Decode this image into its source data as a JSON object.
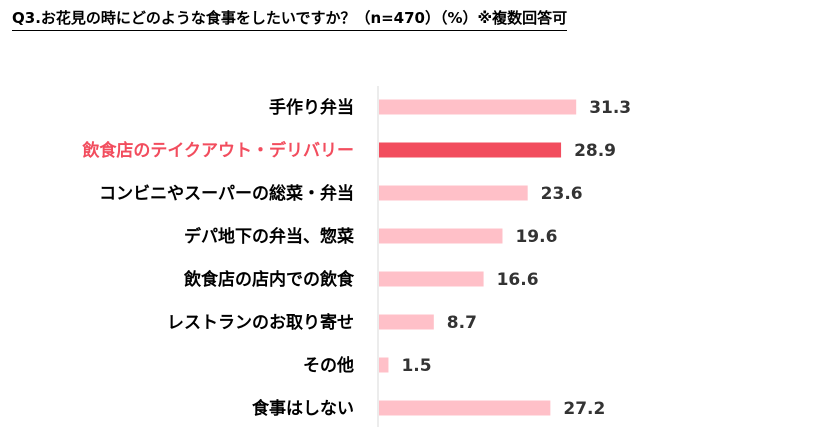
{
  "chart_data": {
    "type": "bar",
    "orientation": "horizontal",
    "title": "Q3.お花見の時にどのような食事をしたいですか？（n=470）（%）※複数回答可",
    "categories": [
      "手作り弁当",
      "飲食店のテイクアウト・デリバリー",
      "コンビニやスーパーの総菜・弁当",
      "デパ地下の弁当、惣菜",
      "飲食店の店内での飲食",
      "レストランのお取り寄せ",
      "その他",
      "食事はしない"
    ],
    "values": [
      31.3,
      28.9,
      23.6,
      19.6,
      16.6,
      8.7,
      1.5,
      27.2
    ],
    "value_labels": [
      "31.3",
      "28.9",
      "23.6",
      "19.6",
      "16.6",
      "8.7",
      "1.5",
      "27.2"
    ],
    "highlight_index": 1,
    "xlim": [
      0,
      40
    ],
    "grid": false,
    "legend": "none",
    "colors": {
      "bar": "#ffc0c8",
      "highlight_bar": "#f24d5e",
      "label": "#000000",
      "highlight_label": "#f24d5e",
      "value": "#333333",
      "axis": "#d9d9d9"
    }
  }
}
